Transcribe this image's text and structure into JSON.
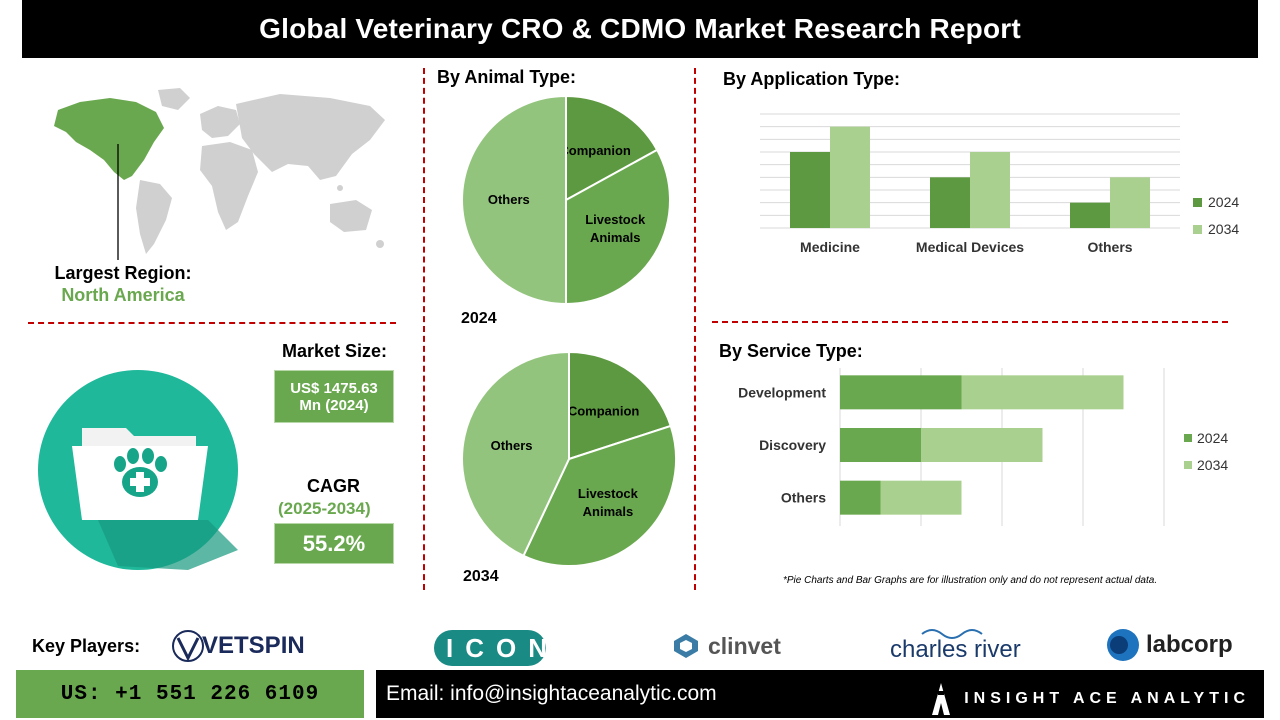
{
  "header": {
    "title": "Global Veterinary CRO & CDMO Market Research Report"
  },
  "region": {
    "label": "Largest Region:",
    "value": "North America"
  },
  "market": {
    "size_label": "Market Size:",
    "size_value_line1": "US$ 1475.63",
    "size_value_line2": "Mn (2024)",
    "cagr_label": "CAGR",
    "cagr_period": "(2025-2034)",
    "cagr_value": "55.2%"
  },
  "animal": {
    "title": "By Animal Type:",
    "year1": "2024",
    "year2": "2034"
  },
  "application": {
    "title": "By  Application Type:"
  },
  "service": {
    "title": "By Service Type:"
  },
  "note": "*Pie Charts and Bar Graphs are for illustration only and do not represent actual data.",
  "key_players": {
    "label": "Key Players:",
    "vetspin": "VETSPIN",
    "icon_logo": "ICON",
    "clinvet": "clinvet",
    "charles_river": "charles river",
    "labcorp": "labcorp"
  },
  "footer": {
    "phone": "US: +1 551 226 6109",
    "email": "Email: info@insightaceanalytic.com",
    "brand": "INSIGHT ACE ANALYTIC"
  },
  "colors": {
    "dark_green": "#5d9940",
    "light_green": "#a9d08e",
    "mid_green": "#6aa84f",
    "teal": "#1fb89a",
    "divider": "#c00000"
  },
  "chart_data": [
    {
      "type": "pie",
      "title": "2024",
      "categories": [
        "Companion",
        "Livestock Animals",
        "Others"
      ],
      "values": [
        17,
        33,
        50
      ]
    },
    {
      "type": "pie",
      "title": "2034",
      "categories": [
        "Companion",
        "Livestock Animals",
        "Others"
      ],
      "values": [
        20,
        37,
        43
      ]
    },
    {
      "type": "bar",
      "orientation": "vertical",
      "categories": [
        "Medicine",
        "Medical Devices",
        "Others"
      ],
      "series": [
        {
          "name": "2024",
          "values": [
            3,
            2,
            1
          ]
        },
        {
          "name": "2034",
          "values": [
            4,
            3,
            2
          ]
        }
      ],
      "ylim": [
        0,
        4.5
      ],
      "grid": true,
      "legend": "right"
    },
    {
      "type": "bar",
      "orientation": "horizontal",
      "stacked": true,
      "categories": [
        "Development",
        "Discovery",
        "Others"
      ],
      "series": [
        {
          "name": "2024",
          "values": [
            1.5,
            1.0,
            0.5
          ]
        },
        {
          "name": "2034",
          "values": [
            2.0,
            1.5,
            1.0
          ]
        }
      ],
      "xlim": [
        0,
        4
      ],
      "grid": true,
      "legend": "right"
    }
  ]
}
